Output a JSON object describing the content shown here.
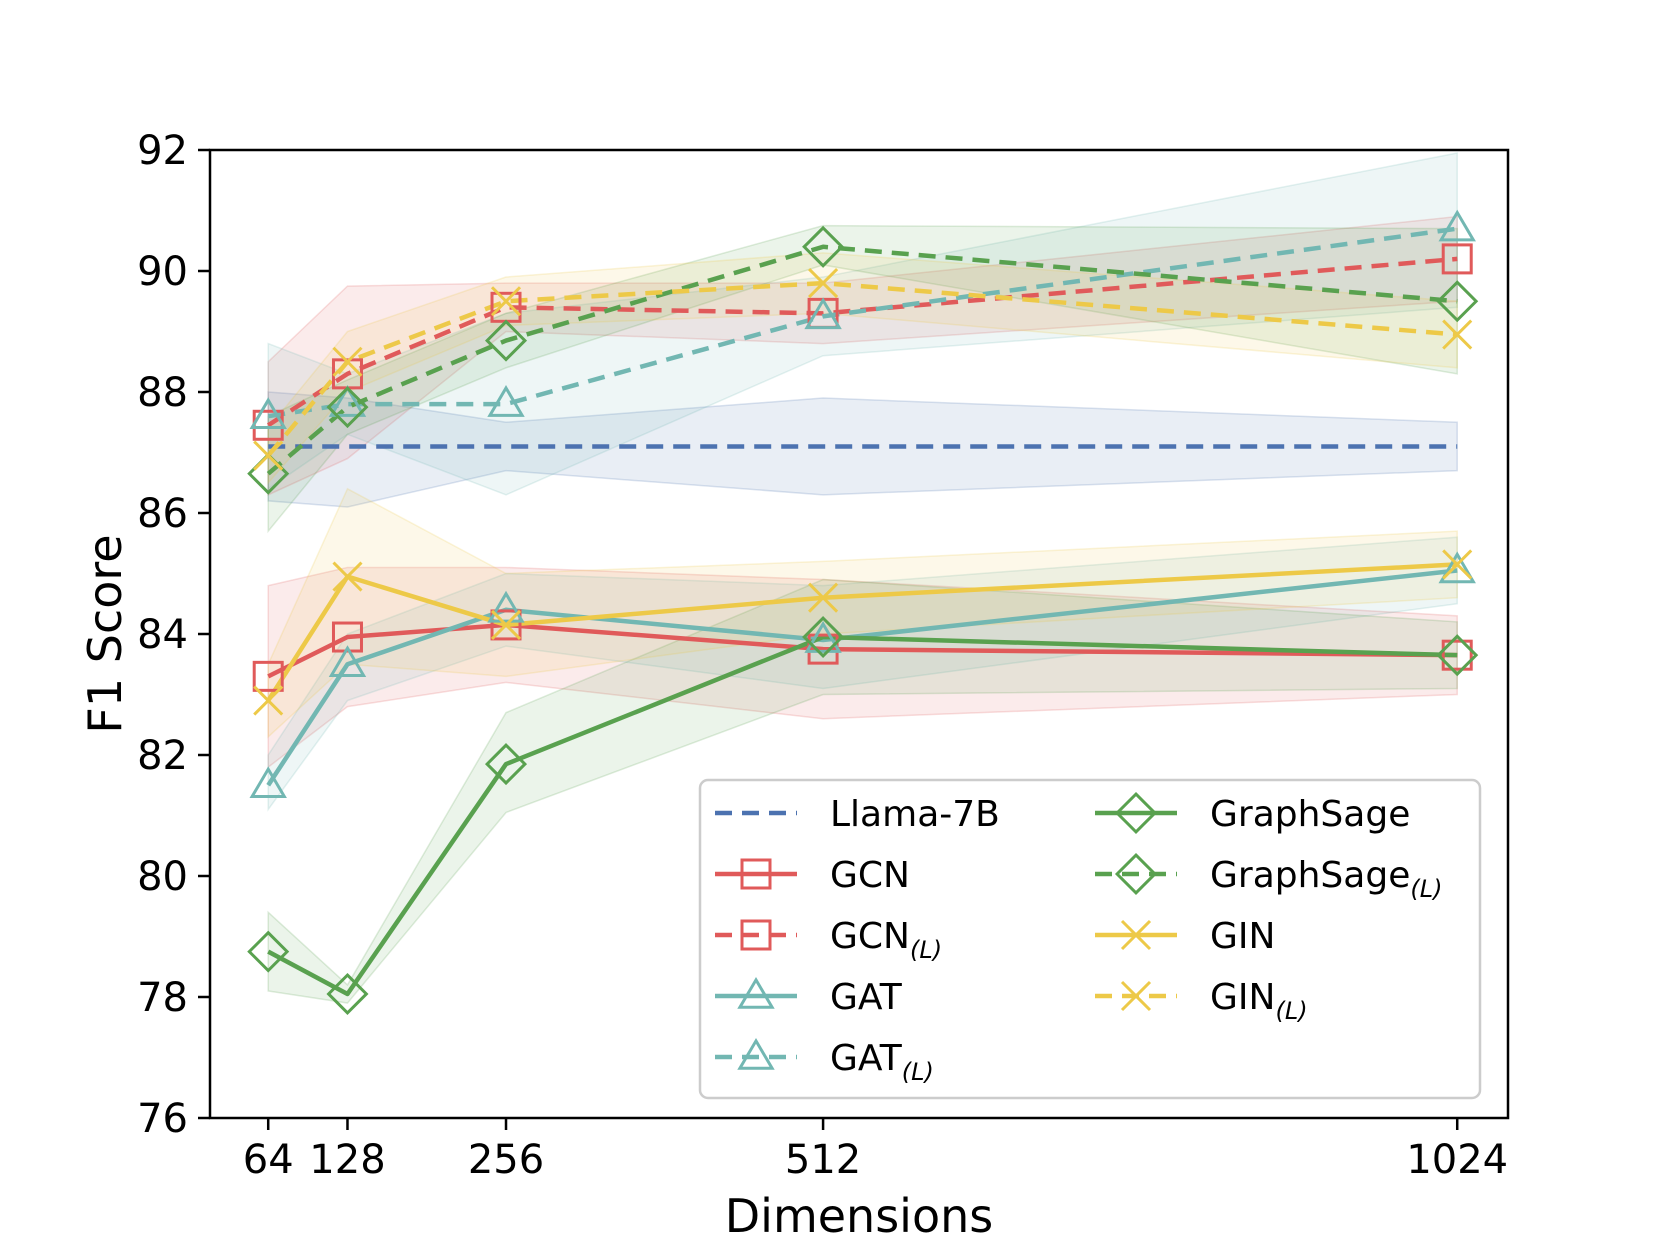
{
  "chart_data": {
    "type": "line",
    "title": "",
    "xlabel": "Dimensions",
    "ylabel": "F1 Score",
    "x": [
      64,
      128,
      256,
      512,
      1024
    ],
    "x_tick_labels": [
      "64",
      "128",
      "256",
      "512",
      "1024"
    ],
    "xlim": [
      17,
      1065
    ],
    "ylim": [
      76,
      92
    ],
    "y_ticks": [
      76,
      78,
      80,
      82,
      84,
      86,
      88,
      90,
      92
    ],
    "y_tick_labels": [
      "76",
      "78",
      "80",
      "82",
      "84",
      "86",
      "88",
      "90",
      "92"
    ],
    "legend_position": "lower-right",
    "series": [
      {
        "key": "llama",
        "name": "Llama-7B",
        "sub": "",
        "color": "#4c72b0",
        "dashed": true,
        "marker": "none",
        "values": [
          87.1,
          87.1,
          87.1,
          87.1,
          87.1
        ],
        "lower": [
          86.2,
          86.1,
          86.7,
          86.3,
          86.7
        ],
        "upper": [
          88.0,
          87.9,
          87.5,
          87.9,
          87.5
        ]
      },
      {
        "key": "gcn",
        "name": "GCN",
        "sub": "",
        "color": "#e05a5a",
        "dashed": false,
        "marker": "square",
        "values": [
          83.3,
          83.95,
          84.15,
          83.75,
          83.65
        ],
        "lower": [
          81.8,
          82.8,
          83.2,
          82.6,
          83.0
        ],
        "upper": [
          84.8,
          85.1,
          85.1,
          84.9,
          84.3
        ]
      },
      {
        "key": "gcn_l",
        "name": "GCN",
        "sub": "(L)",
        "color": "#e05a5a",
        "dashed": true,
        "marker": "square",
        "values": [
          87.45,
          88.3,
          89.4,
          89.3,
          90.2
        ],
        "lower": [
          86.3,
          86.9,
          89.0,
          88.8,
          89.5
        ],
        "upper": [
          88.5,
          89.75,
          89.8,
          89.8,
          90.9
        ]
      },
      {
        "key": "gat",
        "name": "GAT",
        "sub": "",
        "color": "#72b7b2",
        "dashed": false,
        "marker": "triangle",
        "values": [
          81.5,
          83.5,
          84.4,
          83.9,
          85.05
        ],
        "lower": [
          81.1,
          82.9,
          83.8,
          83.1,
          84.5
        ],
        "upper": [
          82.0,
          84.0,
          85.0,
          84.8,
          85.6
        ]
      },
      {
        "key": "gat_l",
        "name": "GAT",
        "sub": "(L)",
        "color": "#72b7b2",
        "dashed": true,
        "marker": "triangle",
        "values": [
          87.6,
          87.8,
          87.8,
          89.25,
          90.7
        ],
        "lower": [
          86.4,
          87.3,
          86.3,
          88.6,
          89.4
        ],
        "upper": [
          88.8,
          88.3,
          89.3,
          89.9,
          91.95
        ]
      },
      {
        "key": "sage",
        "name": "GraphSage",
        "sub": "",
        "color": "#59a14f",
        "dashed": false,
        "marker": "diamond",
        "values": [
          78.75,
          78.05,
          81.85,
          83.95,
          83.65
        ],
        "lower": [
          78.1,
          77.9,
          81.05,
          83.0,
          83.1
        ],
        "upper": [
          79.4,
          78.2,
          82.7,
          84.9,
          84.2
        ]
      },
      {
        "key": "sage_l",
        "name": "GraphSage",
        "sub": "(L)",
        "color": "#59a14f",
        "dashed": true,
        "marker": "diamond",
        "values": [
          86.65,
          87.75,
          88.85,
          90.4,
          89.5
        ],
        "lower": [
          85.7,
          87.3,
          88.4,
          90.1,
          88.3
        ],
        "upper": [
          87.6,
          88.2,
          89.3,
          90.75,
          90.7
        ]
      },
      {
        "key": "gin",
        "name": "GIN",
        "sub": "",
        "color": "#edc948",
        "dashed": false,
        "marker": "x",
        "values": [
          82.9,
          84.95,
          84.15,
          84.6,
          85.15
        ],
        "lower": [
          82.3,
          83.5,
          83.3,
          84.0,
          84.6
        ],
        "upper": [
          83.5,
          86.4,
          85.0,
          85.2,
          85.7
        ]
      },
      {
        "key": "gin_l",
        "name": "GIN",
        "sub": "(L)",
        "color": "#edc948",
        "dashed": true,
        "marker": "x",
        "values": [
          86.95,
          88.5,
          89.5,
          89.8,
          88.95
        ],
        "lower": [
          86.5,
          88.0,
          89.1,
          89.3,
          88.4
        ],
        "upper": [
          87.4,
          89.0,
          89.9,
          90.3,
          89.5
        ]
      }
    ],
    "legend_order": [
      "llama",
      "gcn",
      "gcn_l",
      "gat",
      "gat_l",
      "sage",
      "sage_l",
      "gin",
      "gin_l"
    ]
  }
}
